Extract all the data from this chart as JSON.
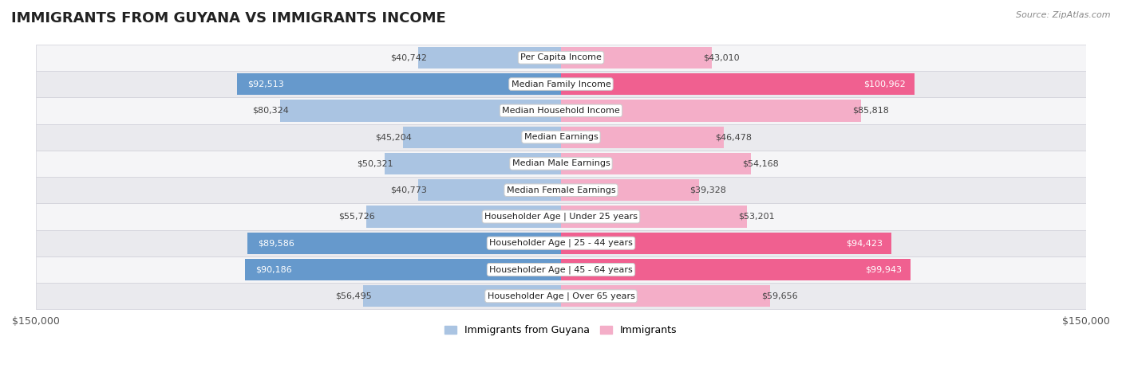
{
  "title": "IMMIGRANTS FROM GUYANA VS IMMIGRANTS INCOME",
  "source": "Source: ZipAtlas.com",
  "categories": [
    "Per Capita Income",
    "Median Family Income",
    "Median Household Income",
    "Median Earnings",
    "Median Male Earnings",
    "Median Female Earnings",
    "Householder Age | Under 25 years",
    "Householder Age | 25 - 44 years",
    "Householder Age | 45 - 64 years",
    "Householder Age | Over 65 years"
  ],
  "guyana_values": [
    40742,
    92513,
    80324,
    45204,
    50321,
    40773,
    55726,
    89586,
    90186,
    56495
  ],
  "immigrants_values": [
    43010,
    100962,
    85818,
    46478,
    54168,
    39328,
    53201,
    94423,
    99943,
    59656
  ],
  "guyana_color_light": "#aac4e2",
  "guyana_color_dark": "#6699cc",
  "immigrants_color_light": "#f4aec8",
  "immigrants_color_dark": "#f06090",
  "row_color_odd": "#f5f5f7",
  "row_color_even": "#eaeaee",
  "max_value": 150000,
  "xlabel_left": "$150,000",
  "xlabel_right": "$150,000",
  "legend_guyana": "Immigrants from Guyana",
  "legend_immigrants": "Immigrants",
  "title_fontsize": 13,
  "label_fontsize": 8.5,
  "bar_height": 0.82,
  "guyana_dark_threshold": 88000,
  "immigrants_dark_threshold": 90000
}
